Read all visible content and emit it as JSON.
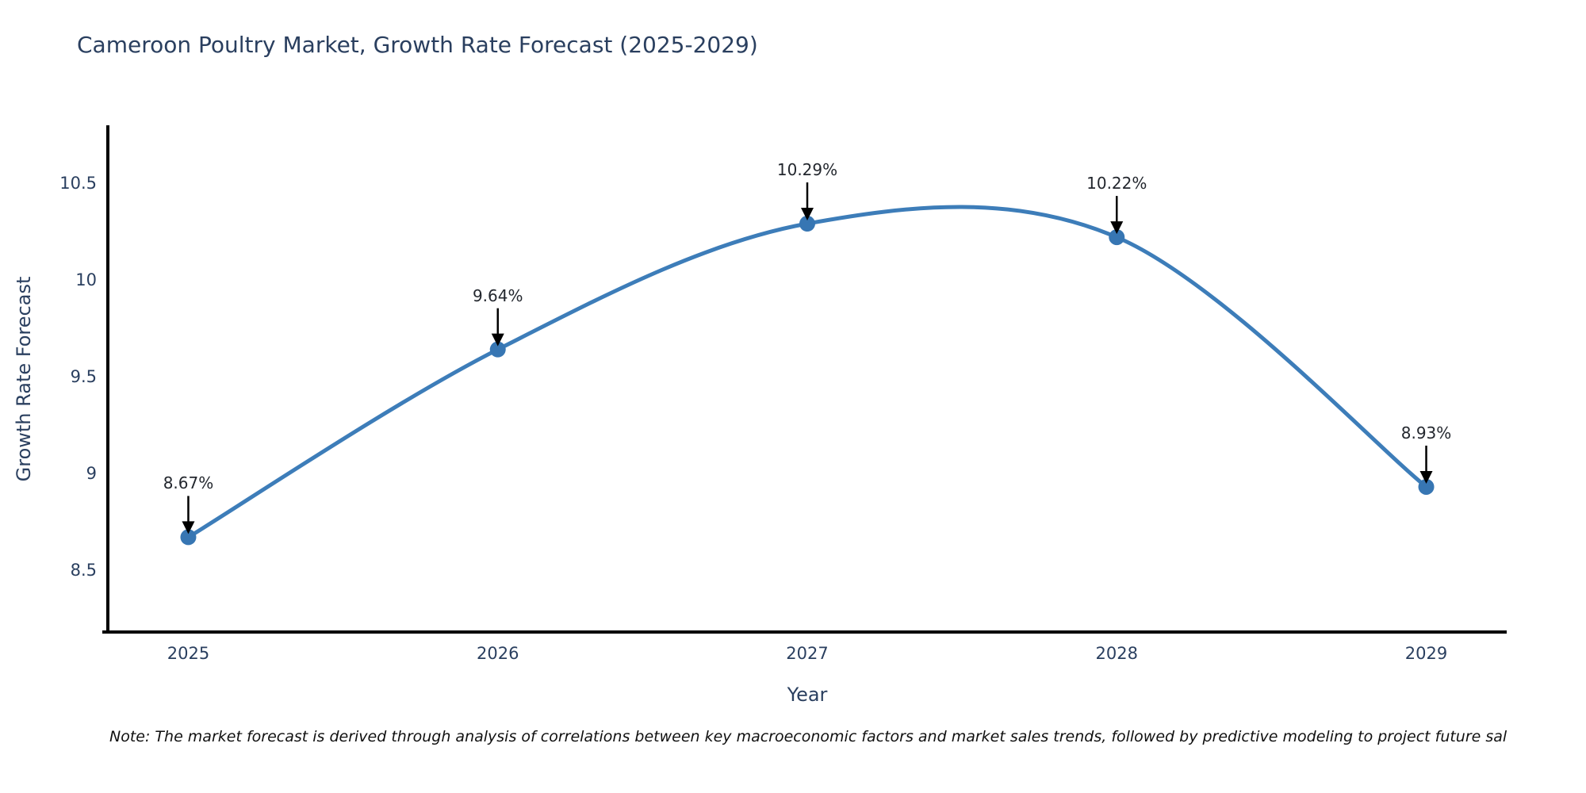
{
  "title": "Cameroon Poultry Market, Growth Rate Forecast (2025-2029)",
  "note": "Note: The market forecast is derived through analysis of correlations between key macroeconomic factors and market sales trends, followed by predictive modeling to project future sal",
  "chart_data": {
    "type": "line",
    "line_shape": "spline",
    "title": "Cameroon Poultry Market, Growth Rate Forecast (2025-2029)",
    "xlabel": "Year",
    "ylabel": "Growth Rate Forecast",
    "x": [
      2025,
      2026,
      2027,
      2028,
      2029
    ],
    "values": [
      8.67,
      9.64,
      10.29,
      10.22,
      8.93
    ],
    "point_labels": [
      "8.67%",
      "9.64%",
      "10.29%",
      "10.22%",
      "8.93%"
    ],
    "x_tick_labels": [
      "2025",
      "2026",
      "2027",
      "2028",
      "2029"
    ],
    "y_ticks": [
      8.5,
      9,
      9.5,
      10,
      10.5
    ],
    "y_tick_labels": [
      "8.5",
      "9",
      "9.5",
      "10",
      "10.5"
    ],
    "xlim": [
      2024.74,
      2029.26
    ],
    "ylim": [
      8.18,
      10.79
    ],
    "grid": false,
    "legend": "none",
    "annotation_arrows": true
  },
  "colors": {
    "line": "#3d7db9",
    "marker": "#3776b3",
    "axis": "#000000",
    "title_text": "#2a3f5f",
    "tick_text": "#2a3f5f",
    "annotation_text": "#23272e",
    "arrow": "#000000",
    "note_text": "#101010",
    "background": "#ffffff"
  }
}
